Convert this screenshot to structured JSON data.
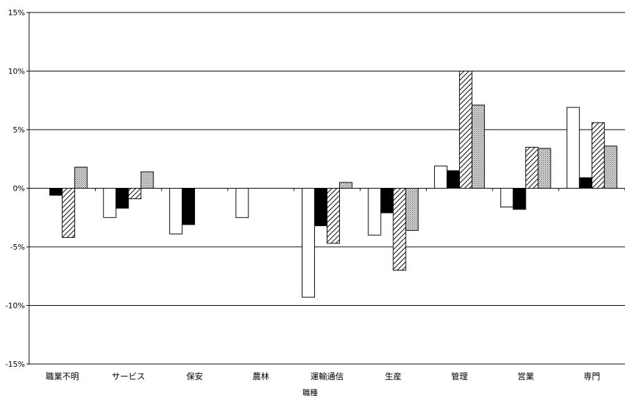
{
  "chart_data": {
    "type": "bar",
    "title": "",
    "xlabel": "職種",
    "ylabel": "",
    "ylim": [
      -15,
      15
    ],
    "yticks": [
      15,
      10,
      5,
      0,
      -5,
      -10,
      -15
    ],
    "ytick_labels": [
      "15%",
      "10%",
      "5%",
      "0%",
      "-5%",
      "-10%",
      "-15%"
    ],
    "categories": [
      "職業不明",
      "サービス",
      "保安",
      "農林",
      "運輸通信",
      "生産",
      "管理",
      "営業",
      "専門"
    ],
    "grid": true,
    "legend": "none",
    "series": [
      {
        "fill": "white",
        "values": [
          0,
          -2.5,
          -3.9,
          -2.5,
          -9.3,
          -4.0,
          1.9,
          -1.6,
          6.9
        ]
      },
      {
        "fill": "black",
        "values": [
          -0.6,
          -1.7,
          -3.1,
          0,
          -3.2,
          -2.1,
          1.5,
          -1.8,
          0.9
        ]
      },
      {
        "fill": "diagonal-hatch",
        "values": [
          -4.2,
          -0.9,
          0,
          0,
          -4.7,
          -7.0,
          10.0,
          3.5,
          5.6
        ]
      },
      {
        "fill": "dotted",
        "values": [
          1.8,
          1.4,
          0,
          0,
          0.5,
          -3.6,
          7.1,
          3.4,
          3.6
        ]
      }
    ]
  }
}
